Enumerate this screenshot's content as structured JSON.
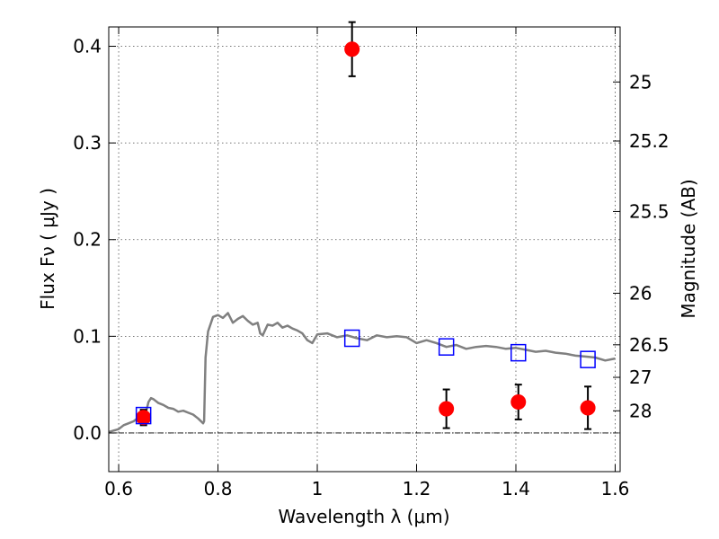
{
  "chart_data": {
    "type": "scatter",
    "xlabel": "Wavelength  λ (μm)",
    "ylabel": "Flux  Fν  ( μJy )",
    "y2label": "Magnitude (AB)",
    "xlim": [
      0.58,
      1.61
    ],
    "ylim": [
      -0.04,
      0.42
    ],
    "grid": true,
    "x_ticks": [
      0.6,
      0.8,
      1.0,
      1.2,
      1.4,
      1.6
    ],
    "x_tick_labels": [
      "0.6",
      "0.8",
      "1",
      "1.2",
      "1.4",
      "1.6"
    ],
    "y_ticks": [
      0.0,
      0.1,
      0.2,
      0.3,
      0.4
    ],
    "y_tick_labels": [
      "0.0",
      "0.1",
      "0.2",
      "0.3",
      "0.4"
    ],
    "mag_ticks": [
      25,
      25.2,
      25.5,
      26,
      26.5,
      27,
      28
    ],
    "mag_tick_labels": [
      "25",
      "25.2",
      "25.5",
      "26",
      "26.5",
      "27",
      "28"
    ],
    "reference_line": {
      "y": 0.0
    },
    "series": [
      {
        "kind": "observed",
        "marker": "circle",
        "color": "#ff0000",
        "x": [
          0.65,
          1.07,
          1.26,
          1.405,
          1.545
        ],
        "y": [
          0.016,
          0.397,
          0.025,
          0.032,
          0.026
        ],
        "yerr": [
          0.008,
          0.028,
          0.02,
          0.018,
          0.022
        ]
      },
      {
        "kind": "model_band",
        "marker": "square",
        "color": "#0000ff",
        "x": [
          0.65,
          1.07,
          1.26,
          1.405,
          1.545
        ],
        "y": [
          0.018,
          0.098,
          0.089,
          0.083,
          0.076
        ]
      },
      {
        "kind": "model_sed",
        "marker": "line",
        "color": "#808080",
        "x": [
          0.58,
          0.6,
          0.61,
          0.62,
          0.63,
          0.64,
          0.65,
          0.655,
          0.66,
          0.665,
          0.67,
          0.68,
          0.69,
          0.7,
          0.71,
          0.72,
          0.73,
          0.74,
          0.75,
          0.76,
          0.77,
          0.772,
          0.775,
          0.78,
          0.79,
          0.8,
          0.81,
          0.82,
          0.83,
          0.84,
          0.85,
          0.86,
          0.87,
          0.88,
          0.885,
          0.89,
          0.9,
          0.91,
          0.92,
          0.93,
          0.94,
          0.95,
          0.96,
          0.97,
          0.98,
          0.99,
          1.0,
          1.02,
          1.04,
          1.06,
          1.08,
          1.1,
          1.12,
          1.14,
          1.16,
          1.18,
          1.2,
          1.22,
          1.24,
          1.26,
          1.28,
          1.3,
          1.32,
          1.34,
          1.36,
          1.38,
          1.4,
          1.42,
          1.44,
          1.46,
          1.48,
          1.5,
          1.52,
          1.54,
          1.56,
          1.58,
          1.6
        ],
        "y": [
          0.001,
          0.004,
          0.008,
          0.01,
          0.012,
          0.016,
          0.015,
          0.021,
          0.032,
          0.036,
          0.035,
          0.031,
          0.029,
          0.026,
          0.025,
          0.022,
          0.023,
          0.021,
          0.019,
          0.015,
          0.01,
          0.012,
          0.078,
          0.105,
          0.12,
          0.122,
          0.119,
          0.124,
          0.114,
          0.118,
          0.121,
          0.116,
          0.112,
          0.114,
          0.103,
          0.101,
          0.112,
          0.111,
          0.114,
          0.109,
          0.111,
          0.108,
          0.106,
          0.103,
          0.096,
          0.093,
          0.102,
          0.103,
          0.099,
          0.101,
          0.098,
          0.096,
          0.101,
          0.099,
          0.1,
          0.099,
          0.093,
          0.096,
          0.093,
          0.089,
          0.091,
          0.087,
          0.089,
          0.09,
          0.089,
          0.087,
          0.088,
          0.086,
          0.084,
          0.085,
          0.083,
          0.082,
          0.08,
          0.079,
          0.078,
          0.075,
          0.077
        ]
      }
    ]
  }
}
